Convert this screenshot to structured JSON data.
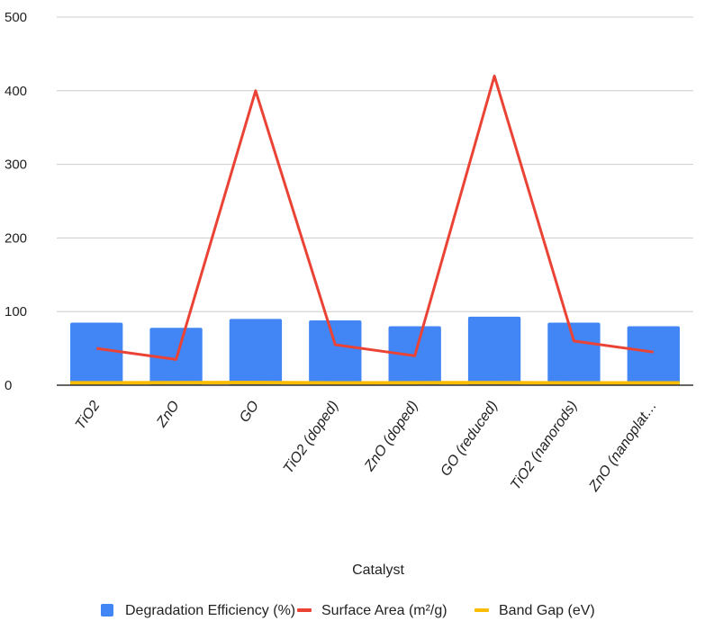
{
  "chart_data": {
    "type": "bar",
    "categories": [
      "TiO2",
      "ZnO",
      "GO",
      "TiO2 (doped)",
      "ZnO (doped)",
      "GO (reduced)",
      "TiO2 (nanorods)",
      "ZnO (nanoplat…"
    ],
    "series": [
      {
        "name": "Degradation Efficiency (%)",
        "kind": "bar",
        "color": "#4285f4",
        "values": [
          85,
          78,
          90,
          88,
          80,
          93,
          85,
          80
        ]
      },
      {
        "name": "Surface Area (m²/g)",
        "kind": "line",
        "color": "#ea4335",
        "values": [
          50,
          35,
          400,
          55,
          40,
          420,
          60,
          45
        ]
      },
      {
        "name": "Band Gap (eV)",
        "kind": "line",
        "color": "#fbbc04",
        "values": [
          3.2,
          3.3,
          3.5,
          3.1,
          3.2,
          3.4,
          3.0,
          3.1
        ]
      }
    ],
    "xlabel": "Catalyst",
    "ylabel": "",
    "ylim": [
      0,
      500
    ],
    "yticks": [
      "0",
      "100",
      "200",
      "300",
      "400",
      "500"
    ],
    "grid": true,
    "legend_position": "bottom"
  }
}
